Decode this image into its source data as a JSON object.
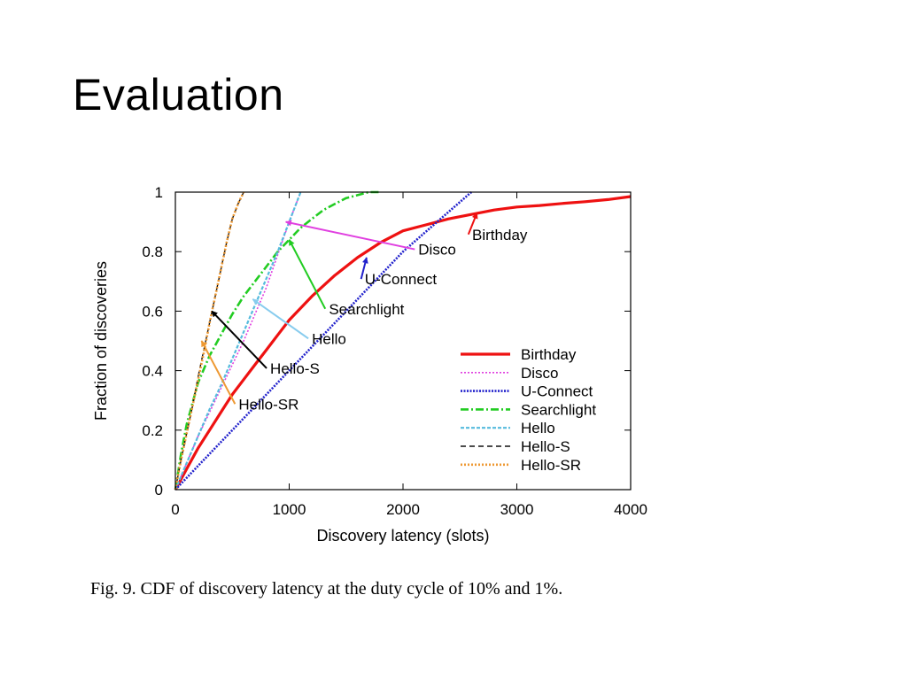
{
  "slide": {
    "title": "Evaluation"
  },
  "figure": {
    "caption": "Fig. 9.  CDF of discovery latency at the duty cycle of 10% and 1%."
  },
  "chart_data": {
    "type": "line",
    "title": "",
    "xlabel": "Discovery latency (slots)",
    "ylabel": "Fraction of discoveries",
    "xlim": [
      0,
      4000
    ],
    "ylim": [
      0,
      1
    ],
    "xticks": [
      0,
      1000,
      2000,
      3000,
      4000
    ],
    "yticks": [
      0,
      0.2,
      0.4,
      0.6,
      0.8,
      1
    ],
    "xtick_labels": [
      "0",
      "1000",
      "2000",
      "3000",
      "4000"
    ],
    "ytick_labels": [
      "0",
      "0.2",
      "0.4",
      "0.6",
      "0.8",
      "1"
    ],
    "grid": false,
    "legend_position": "right-middle",
    "series": [
      {
        "name": "Birthday",
        "color": "#ee1111",
        "dash": "solid",
        "width": 3.2,
        "points": [
          [
            0,
            0
          ],
          [
            100,
            0.07
          ],
          [
            200,
            0.14
          ],
          [
            300,
            0.2
          ],
          [
            400,
            0.26
          ],
          [
            500,
            0.32
          ],
          [
            600,
            0.37
          ],
          [
            700,
            0.42
          ],
          [
            800,
            0.47
          ],
          [
            900,
            0.52
          ],
          [
            1000,
            0.57
          ],
          [
            1200,
            0.65
          ],
          [
            1400,
            0.72
          ],
          [
            1600,
            0.78
          ],
          [
            1800,
            0.83
          ],
          [
            2000,
            0.87
          ],
          [
            2200,
            0.89
          ],
          [
            2400,
            0.91
          ],
          [
            2600,
            0.925
          ],
          [
            2800,
            0.94
          ],
          [
            3000,
            0.95
          ],
          [
            3200,
            0.955
          ],
          [
            3400,
            0.962
          ],
          [
            3600,
            0.968
          ],
          [
            3800,
            0.975
          ],
          [
            4000,
            0.985
          ]
        ]
      },
      {
        "name": "Disco",
        "color": "#e040e0",
        "dash": "2,2",
        "width": 1.6,
        "points": [
          [
            0,
            0
          ],
          [
            100,
            0.09
          ],
          [
            200,
            0.18
          ],
          [
            300,
            0.26
          ],
          [
            400,
            0.34
          ],
          [
            500,
            0.42
          ],
          [
            600,
            0.5
          ],
          [
            700,
            0.59
          ],
          [
            800,
            0.68
          ],
          [
            900,
            0.79
          ],
          [
            1000,
            0.9
          ],
          [
            1100,
            1.0
          ]
        ]
      },
      {
        "name": "U-Connect",
        "color": "#2222cc",
        "dash": "2,1.5",
        "width": 2.6,
        "points": [
          [
            0,
            0
          ],
          [
            250,
            0.1
          ],
          [
            500,
            0.2
          ],
          [
            750,
            0.3
          ],
          [
            1000,
            0.4
          ],
          [
            1250,
            0.5
          ],
          [
            1500,
            0.6
          ],
          [
            1750,
            0.7
          ],
          [
            2000,
            0.8
          ],
          [
            2300,
            0.9
          ],
          [
            2600,
            1.0
          ]
        ]
      },
      {
        "name": "Searchlight",
        "color": "#22cc22",
        "dash": "9,3,2,3",
        "width": 2.6,
        "points": [
          [
            0,
            0
          ],
          [
            50,
            0.12
          ],
          [
            100,
            0.22
          ],
          [
            200,
            0.36
          ],
          [
            300,
            0.45
          ],
          [
            400,
            0.52
          ],
          [
            500,
            0.59
          ],
          [
            600,
            0.65
          ],
          [
            700,
            0.7
          ],
          [
            800,
            0.75
          ],
          [
            900,
            0.8
          ],
          [
            1000,
            0.84
          ],
          [
            1100,
            0.88
          ],
          [
            1200,
            0.91
          ],
          [
            1300,
            0.94
          ],
          [
            1400,
            0.96
          ],
          [
            1500,
            0.98
          ],
          [
            1600,
            0.99
          ],
          [
            1700,
            1.0
          ],
          [
            1800,
            1.0
          ]
        ]
      },
      {
        "name": "Hello",
        "color": "#55bbdd",
        "dash": "4,2",
        "width": 2.2,
        "points": [
          [
            0,
            0
          ],
          [
            100,
            0.09
          ],
          [
            200,
            0.18
          ],
          [
            300,
            0.27
          ],
          [
            400,
            0.35
          ],
          [
            500,
            0.44
          ],
          [
            600,
            0.53
          ],
          [
            700,
            0.62
          ],
          [
            800,
            0.71
          ],
          [
            900,
            0.8
          ],
          [
            1000,
            0.9
          ],
          [
            1100,
            1.0
          ]
        ]
      },
      {
        "name": "Hello-S",
        "color": "#111111",
        "dash": "6,4",
        "width": 1.4,
        "points": [
          [
            0,
            0
          ],
          [
            50,
            0.1
          ],
          [
            100,
            0.19
          ],
          [
            150,
            0.28
          ],
          [
            200,
            0.38
          ],
          [
            250,
            0.47
          ],
          [
            300,
            0.56
          ],
          [
            350,
            0.65
          ],
          [
            400,
            0.74
          ],
          [
            450,
            0.83
          ],
          [
            500,
            0.91
          ],
          [
            550,
            0.96
          ],
          [
            600,
            1.0
          ]
        ]
      },
      {
        "name": "Hello-SR",
        "color": "#ee9933",
        "dash": "2,2",
        "width": 2.6,
        "points": [
          [
            0,
            0
          ],
          [
            50,
            0.1
          ],
          [
            100,
            0.19
          ],
          [
            150,
            0.28
          ],
          [
            200,
            0.37
          ],
          [
            250,
            0.46
          ],
          [
            300,
            0.56
          ],
          [
            350,
            0.65
          ],
          [
            400,
            0.74
          ],
          [
            450,
            0.83
          ],
          [
            500,
            0.91
          ],
          [
            550,
            0.96
          ],
          [
            600,
            1.0
          ]
        ]
      }
    ],
    "annotations": [
      {
        "text": "Birthday",
        "color": "#ee1111",
        "at": [
          2650,
          0.93
        ],
        "label": [
          2850,
          0.84
        ]
      },
      {
        "text": "Disco",
        "color": "#e040e0",
        "at": [
          970,
          0.9
        ],
        "label": [
          2300,
          0.79
        ]
      },
      {
        "text": "U-Connect",
        "color": "#2222cc",
        "at": [
          1680,
          0.78
        ],
        "label": [
          1980,
          0.69
        ]
      },
      {
        "text": "Searchlight",
        "color": "#22cc22",
        "at": [
          1000,
          0.84
        ],
        "label": [
          1680,
          0.59
        ]
      },
      {
        "text": "Hello",
        "color": "#88ccee",
        "at": [
          680,
          0.64
        ],
        "label": [
          1350,
          0.49
        ]
      },
      {
        "text": "Hello-S",
        "color": "#000000",
        "at": [
          320,
          0.6
        ],
        "label": [
          1050,
          0.39
        ]
      },
      {
        "text": "Hello-SR",
        "color": "#ee9933",
        "at": [
          230,
          0.5
        ],
        "label": [
          820,
          0.27
        ]
      }
    ]
  }
}
